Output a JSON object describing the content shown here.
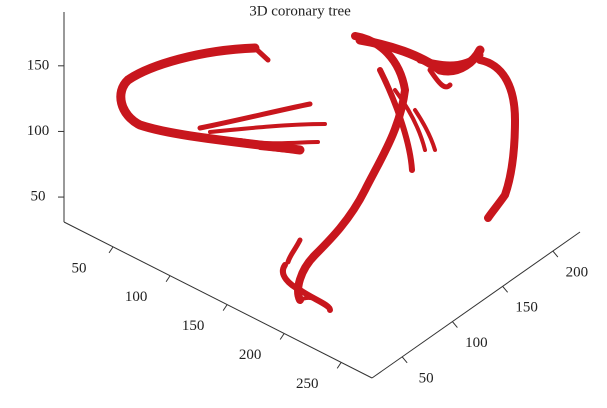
{
  "chart_data": {
    "type": "3d",
    "title": "3D coronary tree",
    "xlim": [
      7,
      277
    ],
    "xticks": [
      50,
      100,
      150,
      200,
      250
    ],
    "ylim": [
      20,
      227
    ],
    "yticks": [
      50,
      100,
      150,
      200
    ],
    "zlim": [
      31,
      191
    ],
    "zticks": [
      50,
      100,
      150
    ],
    "color": "#c8161d"
  }
}
